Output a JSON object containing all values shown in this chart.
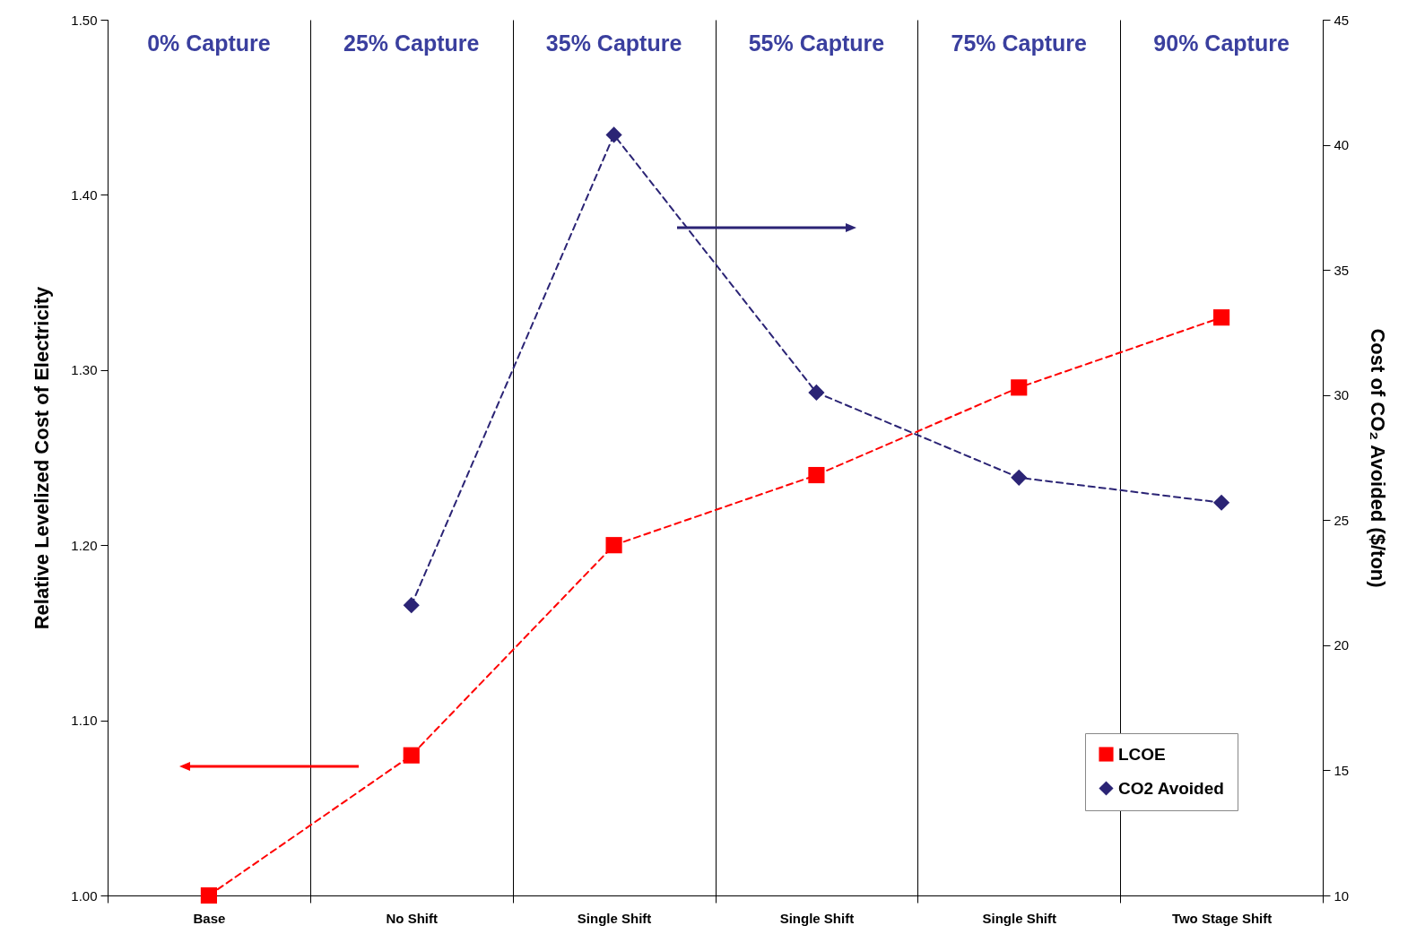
{
  "chart_data": {
    "type": "line",
    "categories": [
      "Base",
      "No Shift",
      "Single Shift",
      "Single Shift",
      "Single Shift",
      "Two Stage Shift"
    ],
    "series": [
      {
        "name": "LCOE",
        "color": "#ff0000",
        "marker": "square",
        "values": [
          1.0,
          1.08,
          1.2,
          1.24,
          1.29,
          1.33
        ]
      },
      {
        "name": "CO2 Avoided",
        "color": "#2b2475",
        "marker": "diamond",
        "axis": "y2",
        "values": [
          null,
          21.6,
          40.4,
          30.1,
          26.7,
          25.7
        ]
      }
    ],
    "ylabel": "Relative Levelized Cost of Electricity",
    "y2label": "Cost of CO₂ Avoided  ($/ton)",
    "ylim": [
      1.0,
      1.5
    ],
    "yticks": [
      {
        "value": 1.0,
        "label": "1.00"
      },
      {
        "value": 1.1,
        "label": "1.10"
      },
      {
        "value": 1.2,
        "label": "1.20"
      },
      {
        "value": 1.3,
        "label": "1.30"
      },
      {
        "value": 1.4,
        "label": "1.40"
      },
      {
        "value": 1.5,
        "label": "1.50"
      }
    ],
    "y2lim": [
      10,
      45
    ],
    "y2ticks": [
      10,
      15,
      20,
      25,
      30,
      35,
      40,
      45
    ],
    "annotations": [
      "0% Capture",
      "25% Capture",
      "35% Capture",
      "55% Capture",
      "75% Capture",
      "90% Capture"
    ],
    "grid": "x",
    "legend": "bottom right",
    "line_style": "dashed"
  }
}
